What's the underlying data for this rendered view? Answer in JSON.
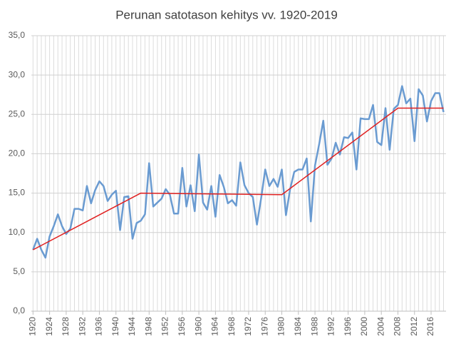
{
  "chart_data": {
    "type": "line",
    "title": "Perunan satotason kehitys vv. 1920-2019",
    "x": [
      1920,
      1921,
      1922,
      1923,
      1924,
      1925,
      1926,
      1927,
      1928,
      1929,
      1930,
      1931,
      1932,
      1933,
      1934,
      1935,
      1936,
      1937,
      1938,
      1939,
      1940,
      1941,
      1942,
      1943,
      1944,
      1945,
      1946,
      1947,
      1948,
      1949,
      1950,
      1951,
      1952,
      1953,
      1954,
      1955,
      1956,
      1957,
      1958,
      1959,
      1960,
      1961,
      1962,
      1963,
      1964,
      1965,
      1966,
      1967,
      1968,
      1969,
      1970,
      1971,
      1972,
      1973,
      1974,
      1975,
      1976,
      1977,
      1978,
      1979,
      1980,
      1981,
      1982,
      1983,
      1984,
      1985,
      1986,
      1987,
      1988,
      1989,
      1990,
      1991,
      1992,
      1993,
      1994,
      1995,
      1996,
      1997,
      1998,
      1999,
      2000,
      2001,
      2002,
      2003,
      2004,
      2005,
      2006,
      2007,
      2008,
      2009,
      2010,
      2011,
      2012,
      2013,
      2014,
      2015,
      2016,
      2017,
      2018,
      2019
    ],
    "series": [
      {
        "color": "#6a9bd1",
        "values": [
          7.8,
          9.2,
          7.8,
          6.8,
          9.5,
          10.8,
          12.3,
          10.8,
          9.8,
          10.5,
          13.0,
          13.0,
          12.8,
          15.9,
          13.7,
          15.4,
          16.5,
          15.9,
          14.0,
          14.8,
          15.3,
          10.3,
          14.5,
          14.6,
          9.2,
          11.2,
          11.5,
          12.3,
          18.8,
          13.3,
          13.8,
          14.3,
          15.5,
          14.8,
          12.4,
          12.4,
          18.2,
          13.3,
          16.0,
          12.7,
          19.9,
          13.8,
          12.9,
          15.9,
          12.0,
          17.3,
          15.8,
          13.7,
          14.1,
          13.4,
          18.9,
          16.0,
          15.0,
          14.5,
          11.0,
          14.3,
          18.0,
          15.9,
          16.8,
          15.8,
          18.0,
          12.2,
          15.5,
          17.7,
          18.0,
          18.0,
          19.4,
          11.4,
          18.5,
          21.2,
          24.2,
          18.6,
          19.4,
          21.4,
          19.9,
          22.1,
          22.0,
          22.7,
          18.0,
          24.5,
          24.4,
          24.4,
          26.2,
          21.5,
          21.1,
          25.8,
          20.5,
          25.7,
          26.2,
          28.6,
          26.4,
          27.0,
          21.6,
          28.2,
          27.4,
          24.1,
          26.7,
          27.7,
          27.7,
          25.3
        ]
      },
      {
        "color": "#e02020",
        "x": [
          1920,
          1946,
          1980,
          2008,
          2019
        ],
        "values": [
          7.8,
          15.0,
          14.8,
          25.8,
          25.8
        ]
      }
    ],
    "xlim": [
      1919.6,
      2019.6
    ],
    "xticks": [
      1920,
      1924,
      1928,
      1932,
      1936,
      1940,
      1944,
      1948,
      1952,
      1956,
      1960,
      1964,
      1968,
      1972,
      1976,
      1980,
      1984,
      1988,
      1992,
      1996,
      2000,
      2004,
      2008,
      2012,
      2016
    ],
    "ylim": [
      0,
      35
    ],
    "yticks": [
      {
        "value": 0,
        "label": "0,0"
      },
      {
        "value": 5,
        "label": "5,0"
      },
      {
        "value": 10,
        "label": "10,0"
      },
      {
        "value": 15,
        "label": "15,0"
      },
      {
        "value": 20,
        "label": "20,0"
      },
      {
        "value": 25,
        "label": "25,0"
      },
      {
        "value": 30,
        "label": "30,0"
      },
      {
        "value": 35,
        "label": "35,0"
      }
    ],
    "grid": true
  }
}
